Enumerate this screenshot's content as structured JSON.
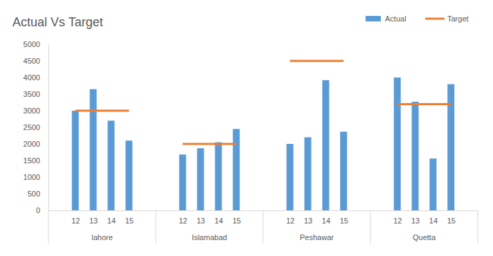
{
  "chart_data": {
    "type": "bar",
    "title": "Actual Vs Target",
    "groups": [
      {
        "label": "lahore",
        "categories": [
          "12",
          "13",
          "14",
          "15"
        ]
      },
      {
        "label": "Islamabad",
        "categories": [
          "12",
          "13",
          "14",
          "15"
        ]
      },
      {
        "label": "Peshawar",
        "categories": [
          "12",
          "13",
          "14",
          "15"
        ]
      },
      {
        "label": "Quetta",
        "categories": [
          "12",
          "13",
          "14",
          "15"
        ]
      }
    ],
    "series": [
      {
        "name": "Actual",
        "type": "bar",
        "color": "#5b9bd5",
        "values": [
          3000,
          3650,
          2700,
          2100,
          1680,
          1870,
          2050,
          2450,
          2000,
          2200,
          3920,
          2370,
          4000,
          3270,
          1560,
          3800
        ]
      },
      {
        "name": "Target",
        "type": "line",
        "color": "#ed7d31",
        "values": [
          3000,
          3000,
          3000,
          3000,
          2000,
          2000,
          2000,
          2000,
          4500,
          4500,
          4500,
          4500,
          3200,
          3200,
          3200,
          3200
        ]
      }
    ],
    "ylim": [
      0,
      5000
    ],
    "yticks": [
      0,
      500,
      1000,
      1500,
      2000,
      2500,
      3000,
      3500,
      4000,
      4500,
      5000
    ],
    "grid": false,
    "legend": "top-right"
  }
}
